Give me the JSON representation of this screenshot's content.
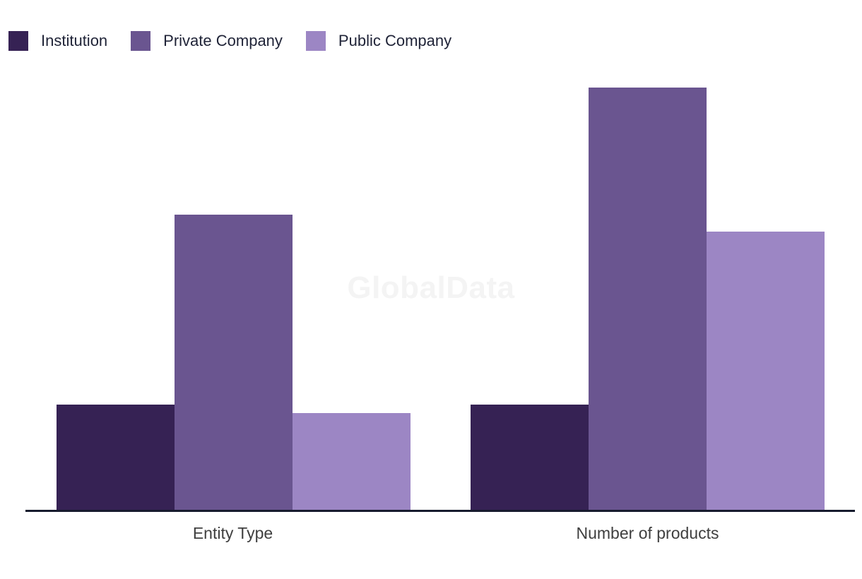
{
  "watermark": {
    "text": "GlobalData"
  },
  "legend": {
    "position": "top-left",
    "items": [
      {
        "label": "Institution",
        "color": "#362254"
      },
      {
        "label": "Private Company",
        "color": "#6a5590"
      },
      {
        "label": "Public Company",
        "color": "#9c86c4"
      }
    ]
  },
  "chart_data": {
    "type": "bar",
    "title": "",
    "xlabel": "",
    "ylabel": "",
    "categories": [
      "Entity Type",
      "Number of products"
    ],
    "series": [
      {
        "name": "Institution",
        "color": "#362254",
        "values": [
          25,
          25
        ]
      },
      {
        "name": "Private Company",
        "color": "#6a5590",
        "values": [
          70,
          100
        ]
      },
      {
        "name": "Public Company",
        "color": "#9c86c4",
        "values": [
          23,
          66
        ]
      }
    ],
    "ylim": [
      0,
      104
    ],
    "value_scale": "relative, % of tallest bar (y-axis has no ticks or labels)",
    "grid": false,
    "y_axis_visible": false,
    "legend_position": "top-left"
  },
  "axis": {
    "line_color": "#171b2e",
    "label_color": "#3f3f3f"
  }
}
